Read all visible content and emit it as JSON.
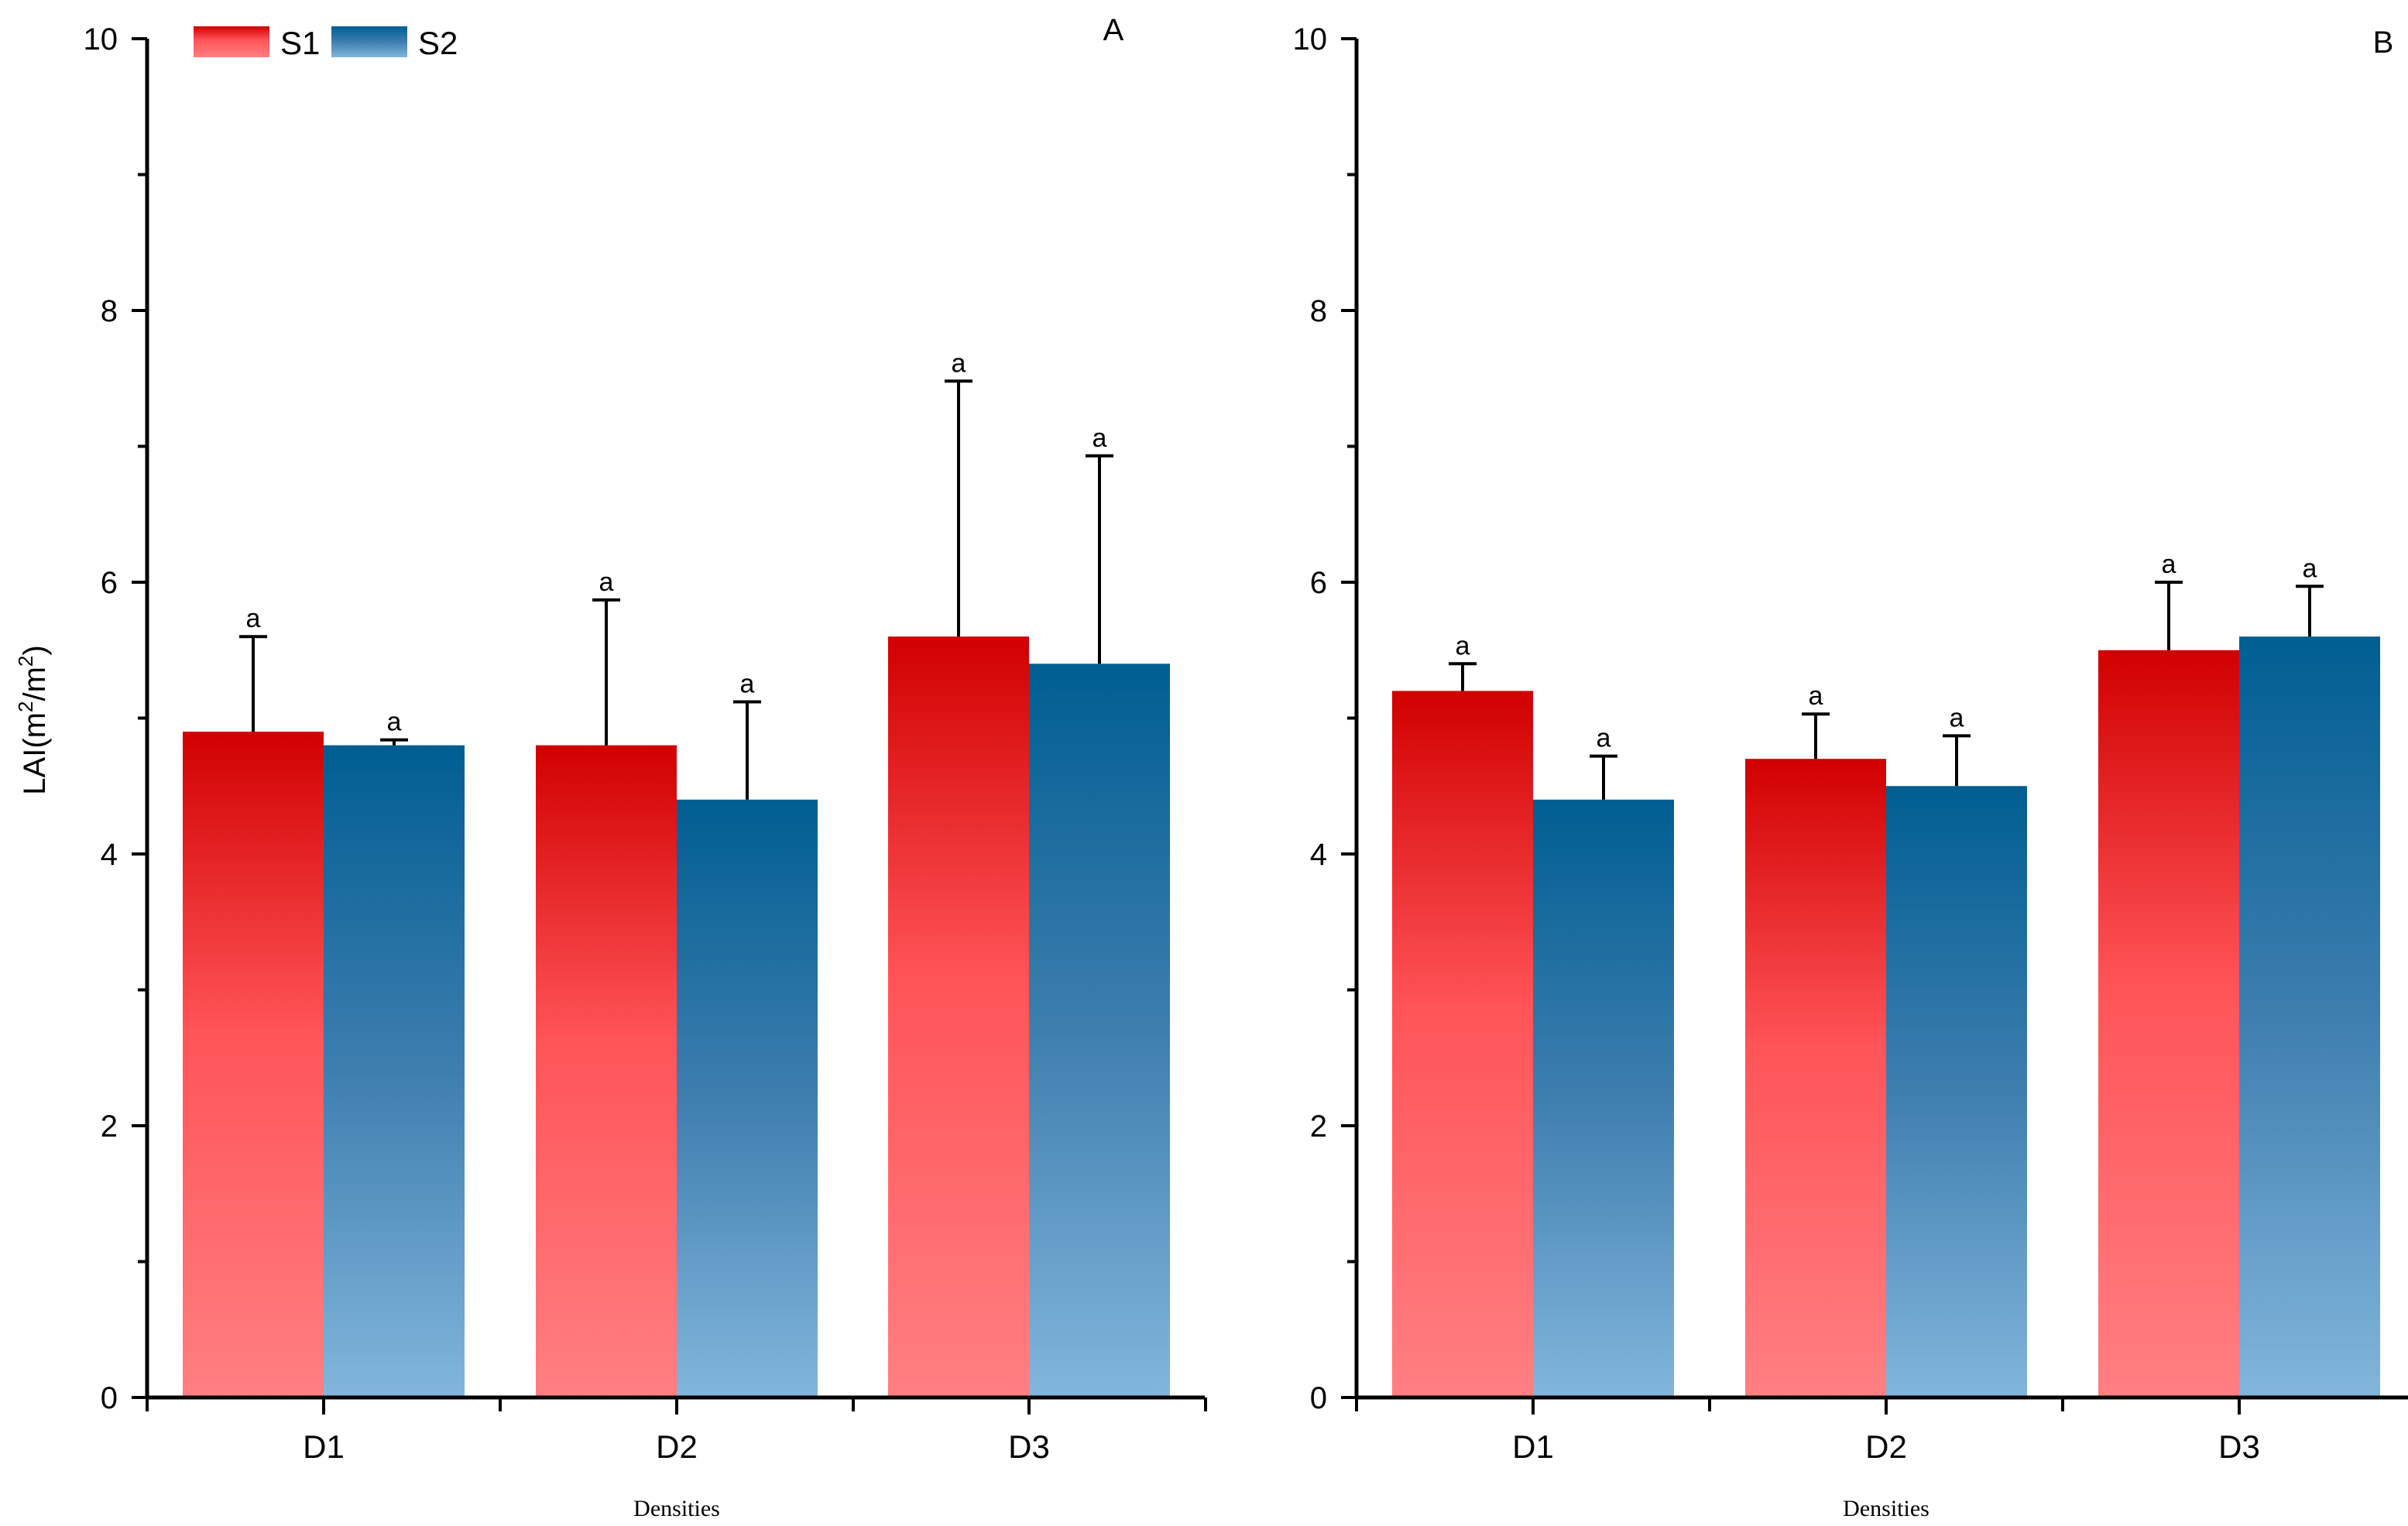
{
  "chart_data": [
    {
      "type": "bar",
      "panel_label": "A",
      "categories": [
        "D1",
        "D2",
        "D3"
      ],
      "xlabel": "Densities",
      "ylabel": "LAI(m2/m2)",
      "ylim": [
        0,
        10
      ],
      "yticks": [
        "0",
        "2",
        "4",
        "6",
        "8",
        "10"
      ],
      "series": [
        {
          "name": "S1",
          "values": [
            4.9,
            4.8,
            5.6
          ],
          "errors": [
            0.7,
            1.07,
            1.88
          ],
          "labels": [
            "a",
            "a",
            "a"
          ]
        },
        {
          "name": "S2",
          "values": [
            4.8,
            4.4,
            5.4
          ],
          "errors": [
            0.04,
            0.72,
            1.53
          ],
          "labels": [
            "a",
            "a",
            "a"
          ]
        }
      ]
    },
    {
      "type": "bar",
      "panel_label": "B",
      "categories": [
        "D1",
        "D2",
        "D3"
      ],
      "xlabel": "Densities",
      "ylabel": "",
      "ylim": [
        0,
        10
      ],
      "yticks": [
        "0",
        "2",
        "4",
        "6",
        "8",
        "10"
      ],
      "series": [
        {
          "name": "S1",
          "values": [
            5.2,
            4.7,
            5.5
          ],
          "errors": [
            0.2,
            0.33,
            0.5
          ],
          "labels": [
            "a",
            "a",
            "a"
          ]
        },
        {
          "name": "S2",
          "values": [
            4.4,
            4.5,
            5.6
          ],
          "errors": [
            0.32,
            0.37,
            0.37
          ],
          "labels": [
            "a",
            "a",
            "a"
          ]
        }
      ]
    }
  ],
  "legend": {
    "items": [
      {
        "name": "S1",
        "color_top": "#d10000",
        "color_bottom": "#ff7f82"
      },
      {
        "name": "S2",
        "color_top": "#005e92",
        "color_bottom": "#82b6dc"
      }
    ]
  },
  "y_axis_title": {
    "prefix": "LAI(m",
    "sup1": "2",
    "mid": "/m",
    "sup2": "2",
    "suffix": ")"
  }
}
